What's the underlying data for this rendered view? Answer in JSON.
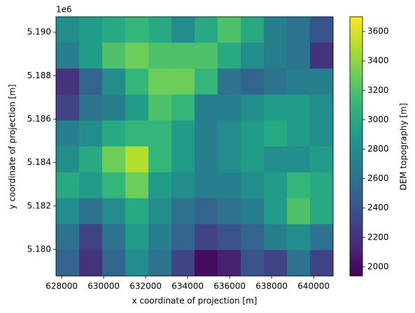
{
  "chart_data": {
    "type": "heatmap",
    "xlabel": "x coordinate of projection [m]",
    "ylabel": "y coordinate of projection [m]",
    "y_offset_label": "1e6",
    "colorbar_label": "DEM topography [m]",
    "colormap": "viridis",
    "xlim": [
      627730,
      640930
    ],
    "ylim": [
      5178780,
      5190710
    ],
    "xticks": [
      628000,
      630000,
      632000,
      634000,
      636000,
      638000,
      640000
    ],
    "yticks": [
      {
        "value": 5180000,
        "label": "5.180"
      },
      {
        "value": 5182000,
        "label": "5.182"
      },
      {
        "value": 5184000,
        "label": "5.184"
      },
      {
        "value": 5186000,
        "label": "5.186"
      },
      {
        "value": 5188000,
        "label": "5.188"
      },
      {
        "value": 5190000,
        "label": "5.190"
      }
    ],
    "clim": [
      1938,
      3700
    ],
    "cticks": [
      2000,
      2200,
      2400,
      2600,
      2800,
      3000,
      3200,
      3400,
      3600
    ],
    "values": [
      [
        2800,
        2900,
        3000,
        3100,
        3000,
        2800,
        3000,
        3200,
        3000,
        2700,
        2600,
        2400
      ],
      [
        2700,
        2900,
        3200,
        3300,
        3200,
        3200,
        3200,
        3000,
        2800,
        2700,
        2600,
        2200
      ],
      [
        2200,
        2500,
        2800,
        3100,
        3300,
        3300,
        3100,
        2600,
        2500,
        2600,
        2700,
        2700
      ],
      [
        2300,
        2600,
        2700,
        2900,
        3200,
        3100,
        2700,
        2700,
        2800,
        2900,
        2900,
        2800
      ],
      [
        2700,
        2800,
        3000,
        3100,
        3100,
        2900,
        2700,
        2800,
        2900,
        3000,
        2900,
        2800
      ],
      [
        2800,
        3000,
        3300,
        3500,
        3100,
        2900,
        2700,
        2800,
        2900,
        2800,
        2800,
        2900
      ],
      [
        3000,
        2900,
        3100,
        3300,
        2900,
        2800,
        2700,
        2700,
        2800,
        2900,
        3100,
        3000
      ],
      [
        2800,
        2600,
        2800,
        3000,
        2800,
        2600,
        2500,
        2600,
        2700,
        2900,
        3200,
        3000
      ],
      [
        2600,
        2300,
        2600,
        2900,
        2700,
        2500,
        2300,
        2400,
        2500,
        2700,
        2800,
        2600
      ],
      [
        2500,
        2200,
        2500,
        2800,
        2600,
        2300,
        2000,
        2100,
        2400,
        2300,
        2600,
        2300
      ]
    ]
  }
}
